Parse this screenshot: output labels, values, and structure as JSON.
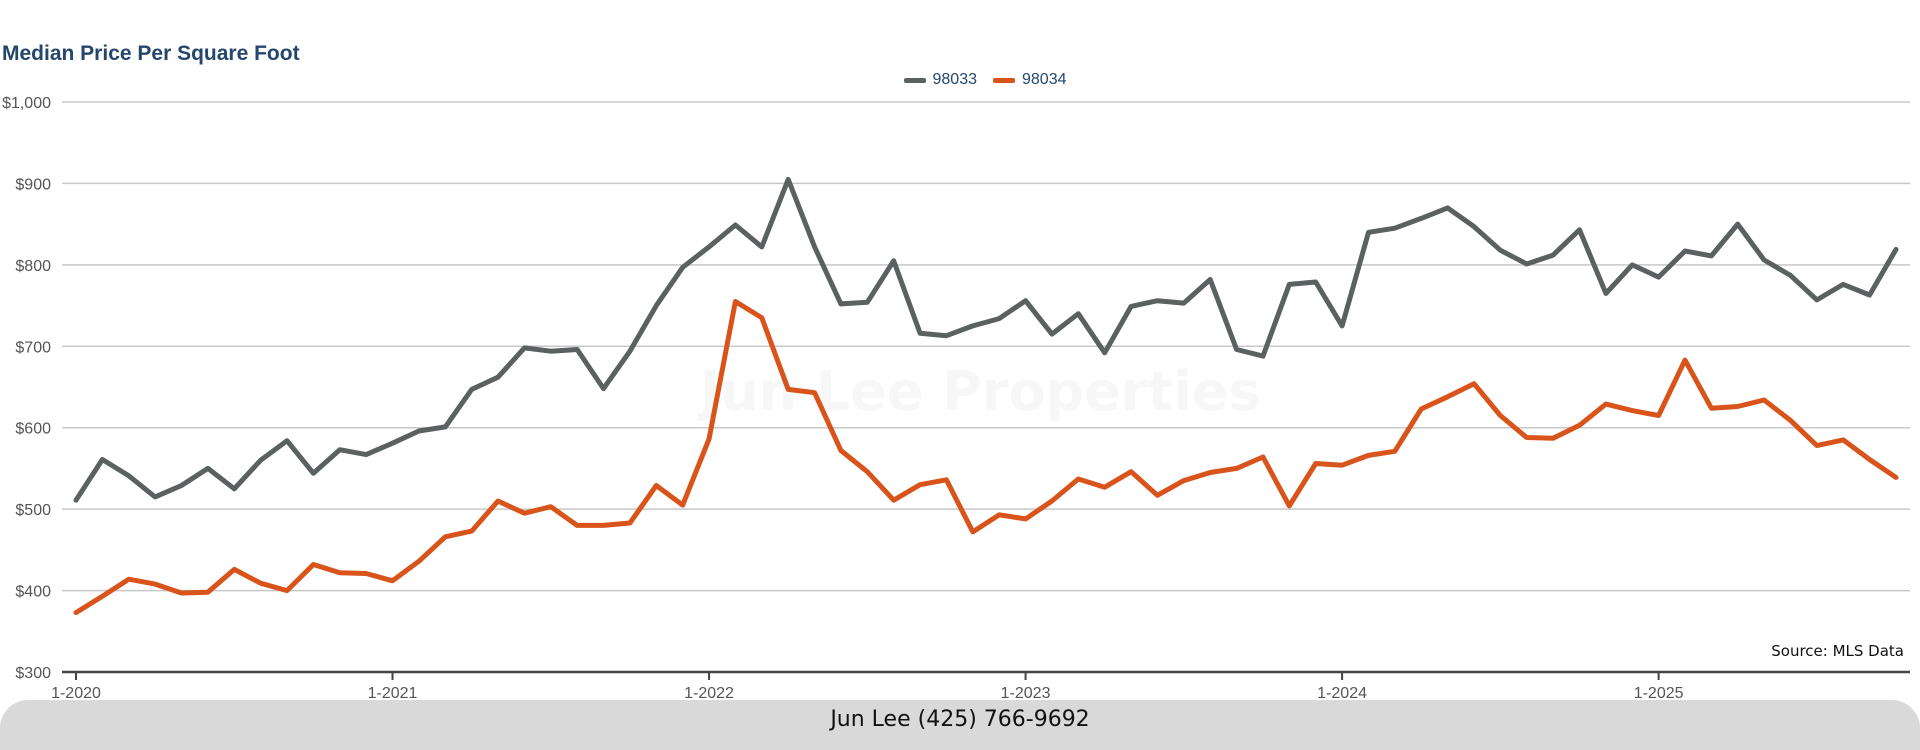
{
  "chart_data": {
    "type": "line",
    "title": "Median Price Per Square Foot",
    "xlabel": "",
    "ylabel": "",
    "ylim": [
      300,
      1000
    ],
    "yticks": [
      {
        "value": 300,
        "label": "$300"
      },
      {
        "value": 400,
        "label": "$400"
      },
      {
        "value": 500,
        "label": "$500"
      },
      {
        "value": 600,
        "label": "$600"
      },
      {
        "value": 700,
        "label": "$700"
      },
      {
        "value": 800,
        "label": "$800"
      },
      {
        "value": 900,
        "label": "$900"
      },
      {
        "value": 1000,
        "label": "$1,000"
      }
    ],
    "xticks": [
      {
        "date": "2020-01",
        "label": "1-2020"
      },
      {
        "date": "2021-01",
        "label": "1-2021"
      },
      {
        "date": "2022-01",
        "label": "1-2022"
      },
      {
        "date": "2023-01",
        "label": "1-2023"
      },
      {
        "date": "2024-01",
        "label": "1-2024"
      },
      {
        "date": "2025-01",
        "label": "1-2025"
      }
    ],
    "x": [
      "2020-01",
      "2020-02",
      "2020-03",
      "2020-04",
      "2020-05",
      "2020-06",
      "2020-07",
      "2020-08",
      "2020-09",
      "2020-10",
      "2020-11",
      "2020-12",
      "2021-01",
      "2021-02",
      "2021-03",
      "2021-04",
      "2021-05",
      "2021-06",
      "2021-07",
      "2021-08",
      "2021-09",
      "2021-10",
      "2021-11",
      "2021-12",
      "2022-01",
      "2022-02",
      "2022-03",
      "2022-04",
      "2022-05",
      "2022-06",
      "2022-07",
      "2022-08",
      "2022-09",
      "2022-10",
      "2022-11",
      "2022-12",
      "2023-01",
      "2023-02",
      "2023-03",
      "2023-04",
      "2023-05",
      "2023-06",
      "2023-07",
      "2023-08",
      "2023-09",
      "2023-10",
      "2023-11",
      "2023-12",
      "2024-01",
      "2024-02",
      "2024-03",
      "2024-04",
      "2024-05",
      "2024-06",
      "2024-07",
      "2024-08",
      "2024-09",
      "2024-10",
      "2024-11",
      "2024-12",
      "2025-01",
      "2025-02",
      "2025-03",
      "2025-04",
      "2025-05",
      "2025-06",
      "2025-07",
      "2025-08",
      "2025-09",
      "2025-10"
    ],
    "series": [
      {
        "name": "98033",
        "color": "#5a6160",
        "values": [
          511,
          561,
          541,
          515,
          529,
          550,
          525,
          560,
          584,
          544,
          573,
          567,
          581,
          596,
          601,
          647,
          662,
          698,
          694,
          696,
          648,
          694,
          750,
          797,
          822,
          849,
          822,
          905,
          822,
          752,
          754,
          805,
          716,
          713,
          725,
          734,
          756,
          715,
          740,
          692,
          749,
          756,
          753,
          782,
          696,
          688,
          776,
          779,
          725,
          840,
          845,
          857,
          870,
          847,
          818,
          801,
          812,
          843,
          765,
          800,
          785,
          817,
          811,
          850,
          806,
          787,
          757,
          776,
          763,
          819
        ]
      },
      {
        "name": "98034",
        "color": "#d9541a",
        "values": [
          373,
          393,
          414,
          408,
          397,
          398,
          426,
          409,
          400,
          432,
          422,
          421,
          412,
          436,
          466,
          473,
          510,
          495,
          503,
          480,
          480,
          483,
          529,
          505,
          586,
          755,
          735,
          647,
          643,
          572,
          546,
          511,
          530,
          536,
          472,
          493,
          488,
          510,
          537,
          527,
          546,
          517,
          535,
          545,
          550,
          564,
          504,
          556,
          554,
          566,
          571,
          623,
          638,
          654,
          615,
          588,
          587,
          603,
          629,
          621,
          615,
          683,
          624,
          626,
          634,
          609,
          578,
          585,
          561,
          539
        ]
      }
    ],
    "grid": true,
    "legend_position": "top-center",
    "source_note": "Source: MLS Data"
  },
  "watermark": "Jun Lee Properties",
  "footer": {
    "text": "Jun Lee (425) 766-9692"
  }
}
